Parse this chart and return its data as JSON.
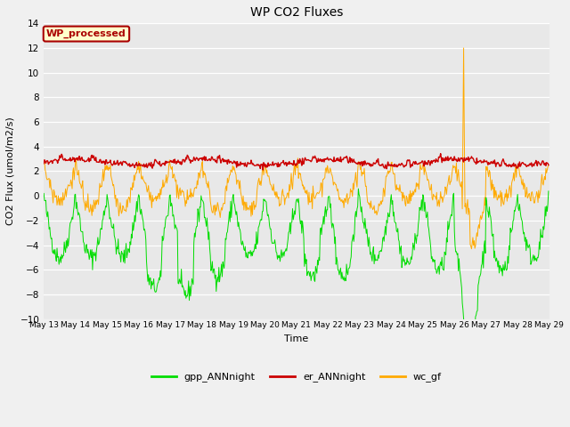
{
  "title": "WP CO2 Fluxes",
  "xlabel": "Time",
  "ylabel": "CO2 Flux (umol/m2/s)",
  "ylim": [
    -10,
    14
  ],
  "yticks": [
    -10,
    -8,
    -6,
    -4,
    -2,
    0,
    2,
    4,
    6,
    8,
    10,
    12,
    14
  ],
  "fig_bg_color": "#f0f0f0",
  "plot_bg_color": "#e8e8e8",
  "annotation_text": "WP_processed",
  "annotation_bg": "#ffffcc",
  "annotation_border": "#aa0000",
  "annotation_text_color": "#aa0000",
  "colors": {
    "gpp": "#00dd00",
    "er": "#cc0000",
    "wc": "#ffaa00"
  },
  "legend_labels": [
    "gpp_ANNnight",
    "er_ANNnight",
    "wc_gf"
  ],
  "n_days": 16,
  "n_per_day": 48,
  "seed": 42
}
